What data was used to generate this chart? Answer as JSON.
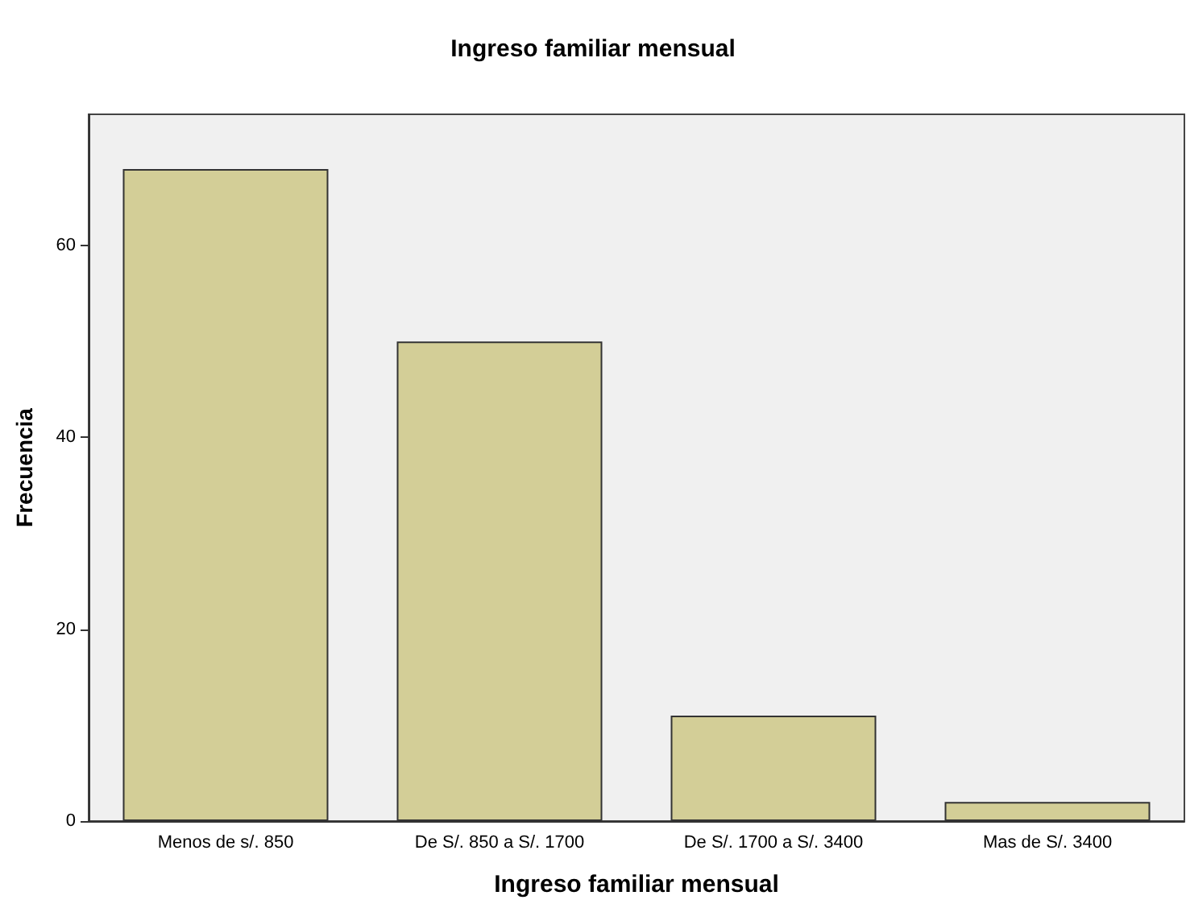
{
  "chart_data": {
    "type": "bar",
    "title": "Ingreso familiar mensual",
    "xlabel": "Ingreso familiar mensual",
    "ylabel": "Frecuencia",
    "categories": [
      "Menos de s/. 850",
      "De S/. 850 a S/. 1700",
      "De S/. 1700 a S/. 3400",
      "Mas de S/. 3400"
    ],
    "values": [
      68,
      50,
      11,
      2
    ],
    "color": "#d3ce97",
    "ylim": [
      0,
      73.7
    ],
    "yticks": [
      0,
      20,
      40,
      60
    ],
    "grid": false
  }
}
